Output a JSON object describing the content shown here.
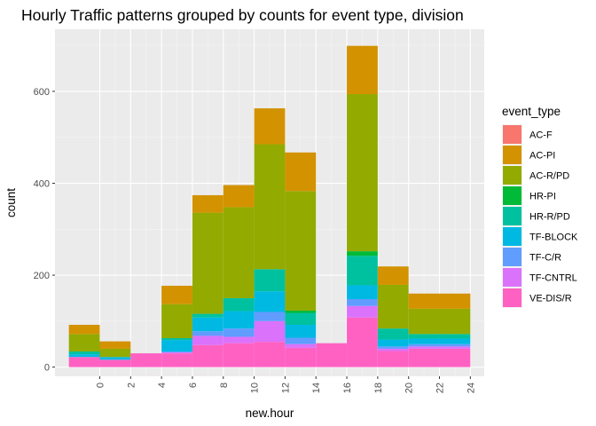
{
  "chart_data": {
    "type": "bar",
    "stacked": true,
    "title": "Hourly Traffic patterns grouped by counts for event type, division",
    "xlabel": "new.hour",
    "ylabel": "count",
    "x_ticks": [
      "0",
      "2",
      "4",
      "6",
      "8",
      "10",
      "12",
      "14",
      "16",
      "18",
      "20",
      "22",
      "24"
    ],
    "y_ticks": [
      "0",
      "200",
      "400",
      "600"
    ],
    "xlim": [
      -2.9,
      24.9
    ],
    "ylim": [
      -20,
      735
    ],
    "bin_width": 2,
    "bin_centers": [
      -1,
      1,
      3,
      5,
      7,
      9,
      11,
      13,
      15,
      17,
      19,
      21,
      23
    ],
    "grid": true,
    "legend": {
      "title": "event_type",
      "position": "right"
    },
    "series": [
      {
        "name": "VE-DIS/R",
        "color": "#FF61C3",
        "values": [
          22,
          16,
          30,
          30,
          48,
          52,
          55,
          42,
          52,
          108,
          35,
          40,
          40
        ]
      },
      {
        "name": "TF-CNTRL",
        "color": "#DB72FB",
        "values": [
          0,
          0,
          0,
          2,
          20,
          14,
          45,
          8,
          0,
          25,
          5,
          5,
          5
        ]
      },
      {
        "name": "TF-C/R",
        "color": "#619CFF",
        "values": [
          0,
          0,
          0,
          2,
          10,
          18,
          20,
          14,
          0,
          15,
          5,
          5,
          5
        ]
      },
      {
        "name": "TF-BLOCK",
        "color": "#00B9E3",
        "values": [
          6,
          6,
          0,
          25,
          30,
          38,
          45,
          28,
          0,
          30,
          15,
          12,
          12
        ]
      },
      {
        "name": "HR-R/PD",
        "color": "#00C19F",
        "values": [
          6,
          0,
          0,
          4,
          8,
          28,
          48,
          26,
          0,
          64,
          24,
          10,
          10
        ]
      },
      {
        "name": "HR-PI",
        "color": "#00BA38",
        "values": [
          0,
          0,
          0,
          0,
          0,
          0,
          0,
          5,
          0,
          10,
          0,
          0,
          0
        ]
      },
      {
        "name": "AC-R/PD",
        "color": "#93AA00",
        "values": [
          38,
          18,
          0,
          74,
          220,
          198,
          272,
          260,
          0,
          342,
          95,
          55,
          55
        ]
      },
      {
        "name": "AC-PI",
        "color": "#D39200",
        "values": [
          20,
          16,
          0,
          40,
          38,
          48,
          78,
          84,
          0,
          105,
          40,
          33,
          33
        ]
      },
      {
        "name": "AC-F",
        "color": "#F8766D",
        "values": [
          0,
          0,
          0,
          0,
          0,
          0,
          0,
          0,
          0,
          0,
          0,
          0,
          0
        ]
      }
    ]
  }
}
